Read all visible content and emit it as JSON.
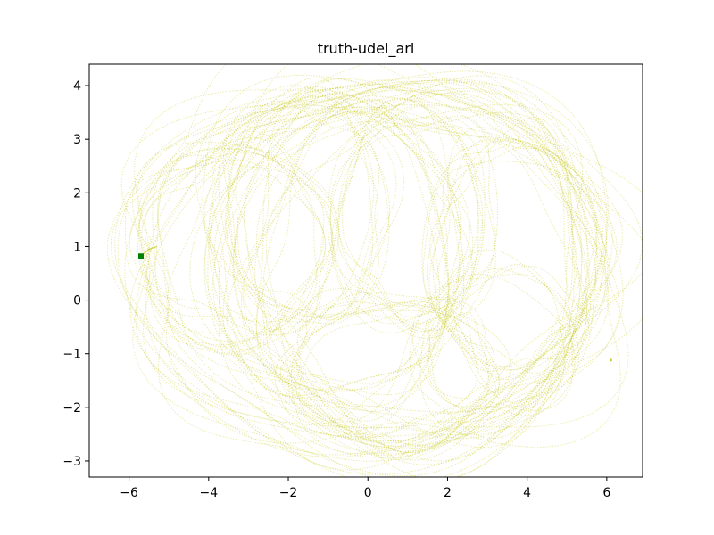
{
  "chart_data": {
    "type": "line",
    "title": "truth-udel_arl",
    "xlabel": "",
    "ylabel": "",
    "xlim": [
      -7,
      6.9
    ],
    "ylim": [
      -3.3,
      4.4
    ],
    "x_ticks": [
      -6,
      -4,
      -2,
      0,
      2,
      4,
      6
    ],
    "y_ticks": [
      -3,
      -2,
      -1,
      0,
      1,
      2,
      3,
      4
    ],
    "x_tick_labels": [
      "−6",
      "−4",
      "−2",
      "0",
      "2",
      "4",
      "6"
    ],
    "y_tick_labels": [
      "−3",
      "−2",
      "−1",
      "0",
      "1",
      "2",
      "3",
      "4"
    ],
    "grid": false,
    "legend": "none",
    "trajectory_color": "#bfbf00",
    "trajectory_style": "dotted",
    "trajectory_opacity": 0.35,
    "start_marker": {
      "x": -5.7,
      "y": 0.82,
      "color": "#008000"
    },
    "end_point": {
      "x": 6.1,
      "y": -1.12
    },
    "series": [
      {
        "values": [
          [
            -5.7,
            0.82
          ],
          [
            -5.5,
            0.95
          ],
          [
            -5.3,
            1.0
          ]
        ]
      }
    ],
    "loop_families": [
      {
        "cx": 0.2,
        "cy": 0.65,
        "rx": 6.0,
        "ry": 3.45,
        "count": 16
      },
      {
        "cx": 1.3,
        "cy": 0.6,
        "rx": 4.3,
        "ry": 3.25,
        "count": 14
      },
      {
        "cx": -3.4,
        "cy": 1.05,
        "rx": 2.4,
        "ry": 1.75,
        "count": 10
      },
      {
        "cx": -1.6,
        "cy": 1.7,
        "rx": 2.0,
        "ry": 2.1,
        "count": 8
      },
      {
        "cx": 1.1,
        "cy": 1.6,
        "rx": 2.0,
        "ry": 2.0,
        "count": 8
      },
      {
        "cx": 3.6,
        "cy": 0.9,
        "rx": 2.0,
        "ry": 2.2,
        "count": 8
      },
      {
        "cx": 0.6,
        "cy": -1.3,
        "rx": 2.6,
        "ry": 1.3,
        "count": 8
      },
      {
        "cx": 3.2,
        "cy": -0.9,
        "rx": 1.9,
        "ry": 1.4,
        "count": 6
      },
      {
        "cx": -0.9,
        "cy": 0.9,
        "rx": 3.0,
        "ry": 2.9,
        "count": 12
      }
    ]
  }
}
